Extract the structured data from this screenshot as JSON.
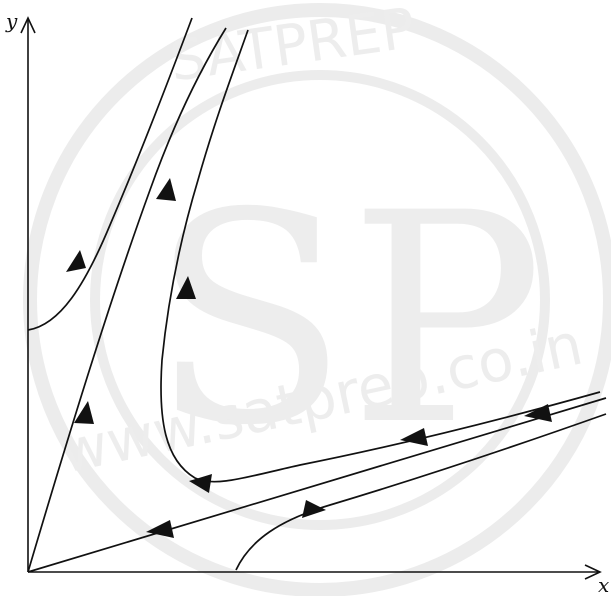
{
  "axes": {
    "x_label": "x",
    "y_label": "y"
  },
  "watermark": {
    "logo": "SP",
    "url": "www.satprep.co.in",
    "ring_text": "SATPREP"
  },
  "colors": {
    "ink": "#111111",
    "watermark": "#ececec"
  }
}
